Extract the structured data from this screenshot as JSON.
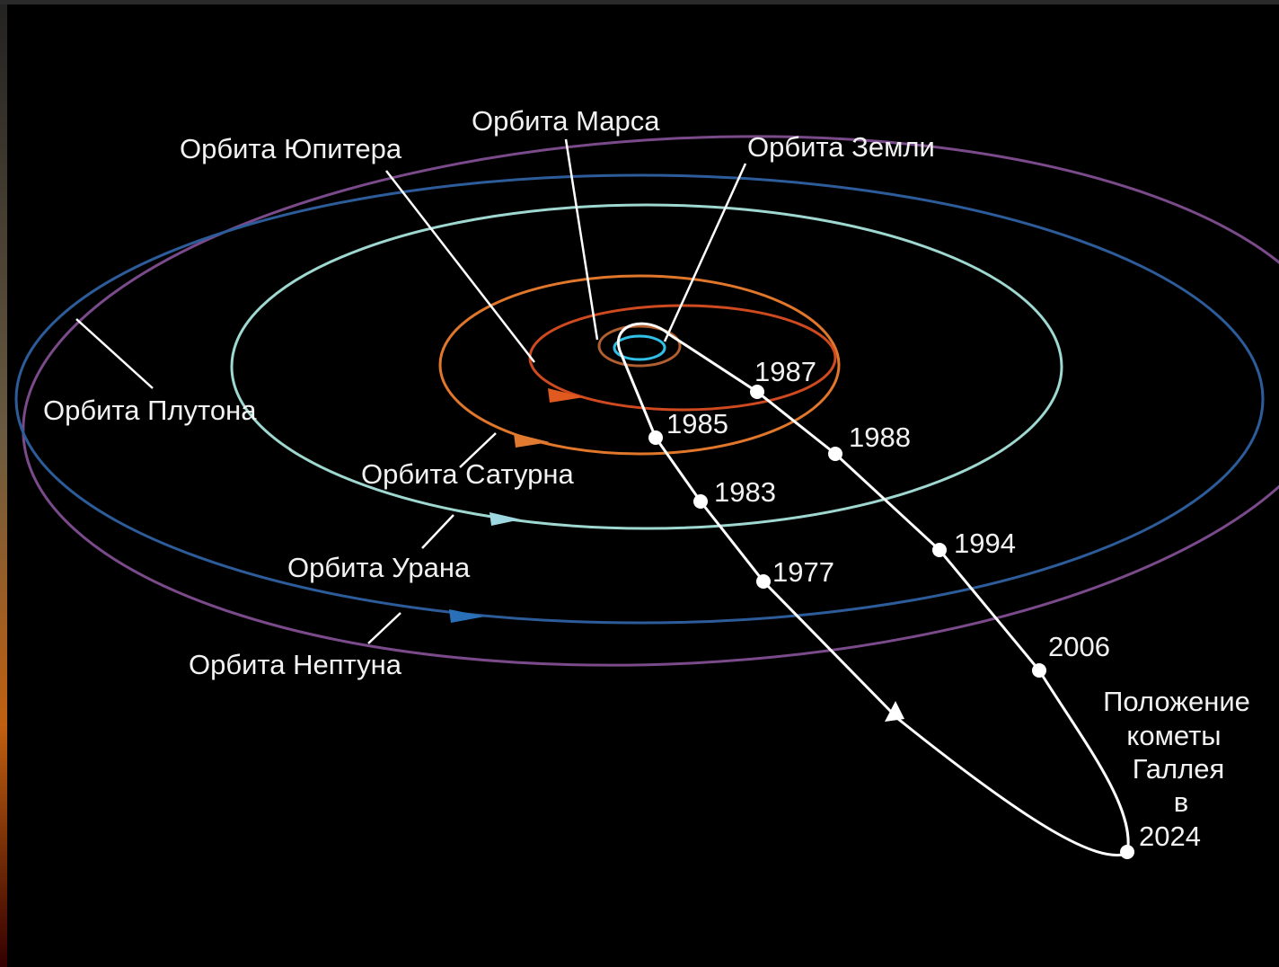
{
  "labels": {
    "mars": "Орбита Марса",
    "jupiter": "Орбита Юпитера",
    "earth": "Орбита Земли",
    "pluto": "Орбита Плутона",
    "saturn": "Орбита Сатурна",
    "uranus": "Орбита Урана",
    "neptune": "Орбита Нептуна"
  },
  "years": [
    1987,
    1985,
    1988,
    1983,
    1994,
    1977,
    2006,
    2024
  ],
  "comet_position": [
    "Положение",
    "кометы",
    "Галлея",
    "в"
  ]
}
